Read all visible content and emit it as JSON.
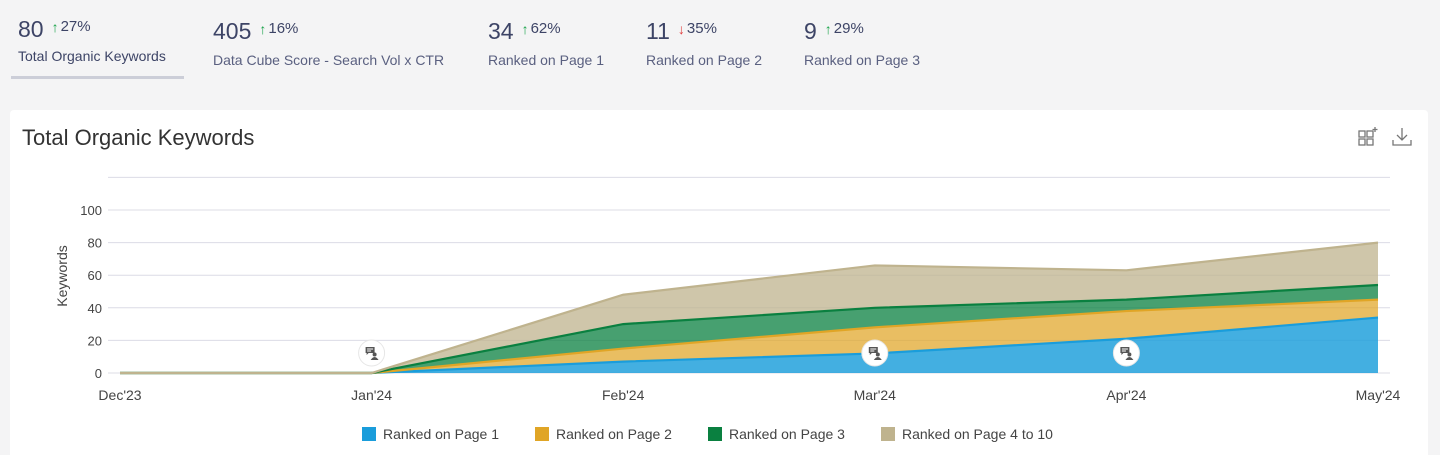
{
  "kpis": [
    {
      "value": "80",
      "delta": "27%",
      "direction": "up",
      "label": "Total Organic Keywords",
      "active": true
    },
    {
      "value": "405",
      "delta": "16%",
      "direction": "up",
      "label": "Data Cube Score - Search Vol x CTR",
      "active": false
    },
    {
      "value": "34",
      "delta": "62%",
      "direction": "up",
      "label": "Ranked on Page 1",
      "active": false
    },
    {
      "value": "11",
      "delta": "35%",
      "direction": "down",
      "label": "Ranked on Page 2",
      "active": false
    },
    {
      "value": "9",
      "delta": "29%",
      "direction": "up",
      "label": "Ranked on Page 3",
      "active": false
    }
  ],
  "arrows": {
    "up": "↑",
    "down": "↓"
  },
  "card": {
    "title": "Total Organic Keywords",
    "tools": [
      "add-widget-icon",
      "download-icon"
    ]
  },
  "chart_data": {
    "type": "area",
    "stacked": true,
    "title": "Total Organic Keywords",
    "xlabel": "",
    "ylabel": "Keywords",
    "categories": [
      "Dec'23",
      "Jan'24",
      "Feb'24",
      "Mar'24",
      "Apr'24",
      "May'24"
    ],
    "yticks": [
      0,
      20,
      40,
      60,
      80,
      100
    ],
    "ylim": [
      0,
      120
    ],
    "grid": true,
    "legend_position": "bottom-center",
    "series": [
      {
        "name": "Ranked on Page 1",
        "color": "#1a9ddb",
        "values": [
          0,
          0,
          7,
          12,
          21,
          34
        ]
      },
      {
        "name": "Ranked on Page 2",
        "color": "#e0a526",
        "values": [
          0,
          0,
          8,
          16,
          17,
          11
        ]
      },
      {
        "name": "Ranked on Page 3",
        "color": "#0a8040",
        "values": [
          0,
          0,
          15,
          12,
          7,
          9
        ]
      },
      {
        "name": "Ranked on Page 4 to 10",
        "color": "#bfb38e",
        "values": [
          0,
          0,
          18,
          26,
          18,
          26
        ]
      }
    ],
    "annotations": [
      {
        "category": "Jan'24",
        "icon": "comment-user-icon"
      },
      {
        "category": "Mar'24",
        "icon": "comment-user-icon"
      },
      {
        "category": "Apr'24",
        "icon": "comment-user-icon"
      }
    ]
  }
}
